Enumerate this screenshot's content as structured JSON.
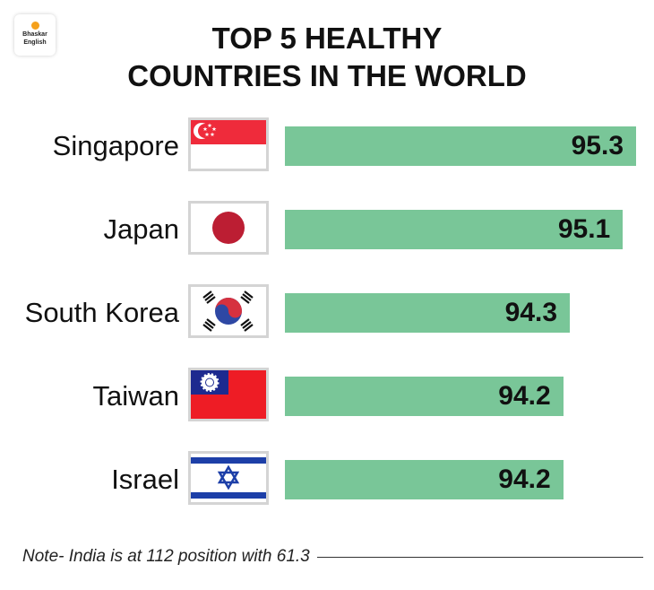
{
  "logo": {
    "line1": "Bhaskar",
    "line2": "English"
  },
  "chart_data": {
    "type": "bar",
    "orientation": "horizontal",
    "title": "TOP 5 HEALTHY COUNTRIES IN THE WORLD",
    "title_lines": [
      "TOP 5 HEALTHY",
      "COUNTRIES IN THE WORLD"
    ],
    "categories": [
      "Singapore",
      "Japan",
      "South Korea",
      "Taiwan",
      "Israel"
    ],
    "values": [
      95.3,
      95.1,
      94.3,
      94.2,
      94.2
    ],
    "value_labels": [
      "95.3",
      "95.1",
      "94.3",
      "94.2",
      "94.2"
    ],
    "xlim": [
      90,
      95.3
    ],
    "bar_color": "#79c698",
    "grid": false,
    "note": "Note- India is at 112 position with 61.3"
  }
}
